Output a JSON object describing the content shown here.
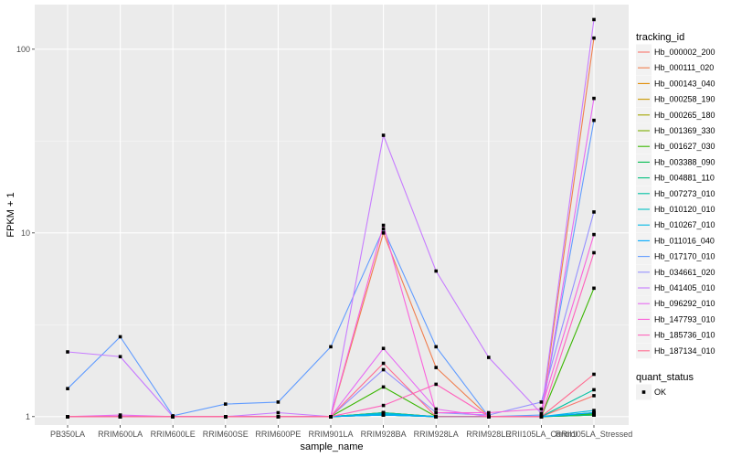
{
  "chart_data": {
    "type": "line",
    "xlabel": "sample_name",
    "ylabel": "FPKM + 1",
    "y_scale": "log10",
    "ylim": [
      0.9,
      175
    ],
    "y_ticks": [
      1,
      10,
      100
    ],
    "y_tick_labels": [
      "1",
      "10",
      "100"
    ],
    "categories": [
      "PB350LA",
      "RRIM600LA",
      "RRIM600LE",
      "RRIM600SE",
      "RRIM600PE",
      "RRIM901LA",
      "RRIM928BA",
      "RRIM928LA",
      "RRIM928LE",
      "RRII105LA_Control",
      "RRII105LA_Stressed"
    ],
    "legend_title": "tracking_id",
    "series": [
      {
        "name": "Hb_000002_200",
        "color": "#F8766D",
        "values": [
          1,
          1,
          1,
          1,
          1,
          1,
          1.05,
          1,
          1,
          1,
          1.3
        ]
      },
      {
        "name": "Hb_000111_020",
        "color": "#F07E4E",
        "values": [
          1,
          1,
          1,
          1,
          1,
          1,
          10,
          1.85,
          1,
          1,
          115
        ]
      },
      {
        "name": "Hb_000143_040",
        "color": "#E08A00",
        "values": [
          1,
          1,
          1,
          1,
          1,
          1,
          1.02,
          1,
          1,
          1,
          1.02
        ]
      },
      {
        "name": "Hb_000258_190",
        "color": "#C99800",
        "values": [
          1,
          1,
          1,
          1,
          1,
          1,
          1.02,
          1,
          1,
          1,
          1.05
        ]
      },
      {
        "name": "Hb_000265_180",
        "color": "#A3A500",
        "values": [
          1,
          1,
          1,
          1,
          1,
          1,
          1.05,
          1,
          1,
          1,
          1.02
        ]
      },
      {
        "name": "Hb_001369_330",
        "color": "#7AAE00",
        "values": [
          1,
          1,
          1,
          1,
          1,
          1,
          1.05,
          1,
          1,
          1,
          1.03
        ]
      },
      {
        "name": "Hb_001627_030",
        "color": "#39B600",
        "values": [
          1,
          1,
          1,
          1,
          1,
          1,
          1.45,
          1,
          1,
          1,
          5
        ]
      },
      {
        "name": "Hb_003388_090",
        "color": "#00BB4E",
        "values": [
          1,
          1,
          1,
          1,
          1,
          1,
          1.02,
          1,
          1,
          1,
          1.04
        ]
      },
      {
        "name": "Hb_004881_110",
        "color": "#00BF7D",
        "values": [
          1,
          1,
          1,
          1,
          1,
          1,
          1.02,
          1,
          1,
          1,
          1.02
        ]
      },
      {
        "name": "Hb_007273_010",
        "color": "#00C1A3",
        "values": [
          1,
          1,
          1,
          1,
          1,
          1,
          1.05,
          1,
          1,
          1,
          1.4
        ]
      },
      {
        "name": "Hb_010120_010",
        "color": "#00BFC4",
        "values": [
          1,
          1,
          1,
          1,
          1,
          1,
          1.03,
          1,
          1,
          1,
          1.05
        ]
      },
      {
        "name": "Hb_010267_010",
        "color": "#00B8E5",
        "values": [
          1,
          1,
          1,
          1,
          1,
          1,
          1.04,
          1,
          1,
          1,
          1.08
        ]
      },
      {
        "name": "Hb_011016_040",
        "color": "#00A9FF",
        "values": [
          1,
          1,
          1,
          1,
          1,
          1,
          1.02,
          1,
          1,
          1,
          1.05
        ]
      },
      {
        "name": "Hb_017170_010",
        "color": "#619CFF",
        "values": [
          1.42,
          2.72,
          1.01,
          1.17,
          1.2,
          2.4,
          10.5,
          2.4,
          1,
          1.02,
          41
        ]
      },
      {
        "name": "Hb_034661_020",
        "color": "#9590FF",
        "values": [
          1,
          1,
          1,
          1,
          1,
          1,
          1.8,
          1.05,
          1.02,
          1.2,
          13
        ]
      },
      {
        "name": "Hb_041405_010",
        "color": "#C77CFF",
        "values": [
          2.25,
          2.12,
          1,
          1,
          1.05,
          1,
          34,
          6.2,
          2.1,
          1.04,
          145
        ]
      },
      {
        "name": "Hb_096292_010",
        "color": "#E76BF3",
        "values": [
          1,
          1.02,
          1,
          1,
          1,
          1,
          2.35,
          1.1,
          1,
          1,
          54
        ]
      },
      {
        "name": "Hb_147793_010",
        "color": "#FA62DB",
        "values": [
          1,
          1,
          1,
          1,
          1,
          1,
          11,
          1.05,
          1.05,
          1.1,
          9.8
        ]
      },
      {
        "name": "Hb_185736_010",
        "color": "#FF62BC",
        "values": [
          1,
          1,
          1,
          1,
          1,
          1,
          1.15,
          1.5,
          1,
          1,
          7.8
        ]
      },
      {
        "name": "Hb_187134_010",
        "color": "#FF6C91",
        "values": [
          1,
          1,
          1,
          1,
          1,
          1,
          1.95,
          1,
          1,
          1,
          1.7
        ]
      }
    ],
    "shape_legend": {
      "title": "quant_status",
      "items": [
        {
          "label": "OK",
          "symbol": "square"
        }
      ]
    }
  }
}
